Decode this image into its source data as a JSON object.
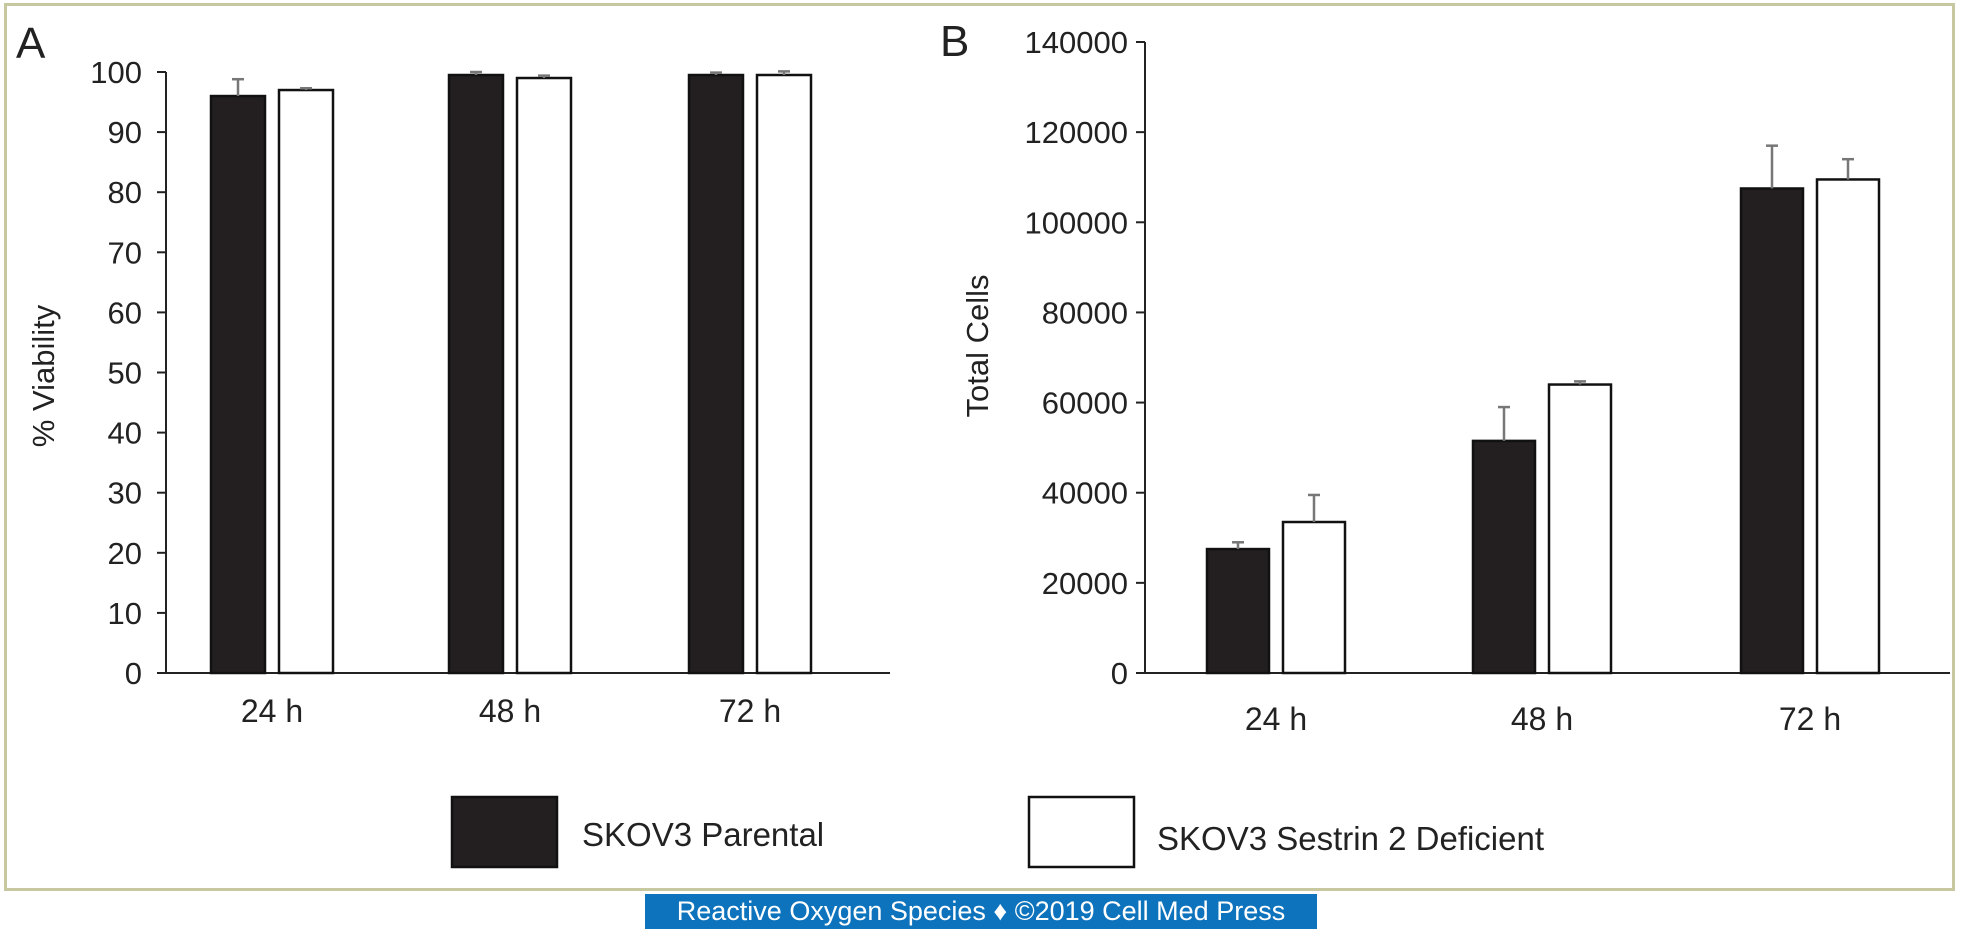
{
  "chart_data": [
    {
      "panel_label": "A",
      "type": "bar",
      "categories": [
        "24 h",
        "48 h",
        "72 h"
      ],
      "ylabel": "% Viability",
      "ylim": [
        0,
        100
      ],
      "yticks": [
        0,
        10,
        20,
        30,
        40,
        50,
        60,
        70,
        80,
        90,
        100
      ],
      "series": [
        {
          "name": "SKOV3 Parental",
          "values": [
            96,
            99.5,
            99.5
          ],
          "errors": [
            2.8,
            0.5,
            0.4
          ]
        },
        {
          "name": "SKOV3 Sestrin 2 Deficient",
          "values": [
            97,
            99,
            99.5
          ],
          "errors": [
            0.3,
            0.4,
            0.6
          ]
        }
      ]
    },
    {
      "panel_label": "B",
      "type": "bar",
      "categories": [
        "24 h",
        "48 h",
        "72 h"
      ],
      "ylabel": "Total Cells",
      "ylim": [
        0,
        140000
      ],
      "yticks": [
        0,
        20000,
        40000,
        60000,
        80000,
        100000,
        120000,
        140000
      ],
      "series": [
        {
          "name": "SKOV3 Parental",
          "values": [
            27500,
            51500,
            107500
          ],
          "errors": [
            1500,
            7500,
            9500
          ]
        },
        {
          "name": "SKOV3 Sestrin 2 Deficient",
          "values": [
            33500,
            64000,
            109500
          ],
          "errors": [
            6000,
            700,
            4500
          ]
        }
      ]
    }
  ],
  "legend": [
    {
      "label": "SKOV3 Parental",
      "fill": "#231f20"
    },
    {
      "label": "SKOV3 Sestrin 2 Deficient",
      "fill": "#ffffff"
    }
  ],
  "colors": {
    "parental": "#231f20",
    "deficient": "#ffffff",
    "error_bar": "#777777",
    "frame": "#c8c8a0",
    "footer": "#0e73bd"
  },
  "footer": {
    "text": "Reactive Oxygen Species ♦ ©2019 Cell Med Press"
  }
}
